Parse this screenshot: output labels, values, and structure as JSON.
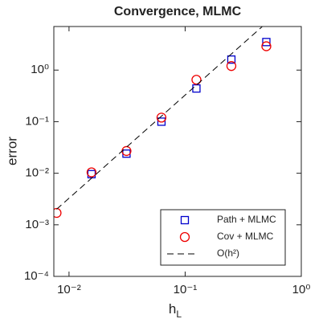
{
  "chart_data": {
    "type": "scatter",
    "title": "Convergence, MLMC",
    "xlabel": {
      "base": "h",
      "sub": "L"
    },
    "ylabel": "error",
    "xscale": "log",
    "yscale": "log",
    "xlim": [
      0.0074,
      1
    ],
    "ylim": [
      0.0001,
      7
    ],
    "xticks": [
      {
        "value": 0.01,
        "label": "10⁻²"
      },
      {
        "value": 0.1,
        "label": "10⁻¹"
      },
      {
        "value": 1,
        "label": "10⁰"
      }
    ],
    "yticks": [
      {
        "value": 0.0001,
        "label": "10⁻⁴"
      },
      {
        "value": 0.001,
        "label": "10⁻³"
      },
      {
        "value": 0.01,
        "label": "10⁻²"
      },
      {
        "value": 0.1,
        "label": "10⁻¹"
      },
      {
        "value": 1,
        "label": "10⁰"
      }
    ],
    "legend": "lower right",
    "series": [
      {
        "name": "Path + MLMC",
        "color": "#0000cc",
        "marker": "square",
        "x": [
          0.015625,
          0.03125,
          0.0625,
          0.125,
          0.25,
          0.5
        ],
        "values": [
          0.0096,
          0.024,
          0.1,
          0.44,
          1.6,
          3.5
        ]
      },
      {
        "name": "Cov + MLMC",
        "color": "#ee0000",
        "marker": "circle",
        "x": [
          0.0078125,
          0.015625,
          0.03125,
          0.0625,
          0.125,
          0.25,
          0.5
        ],
        "values": [
          0.0017,
          0.0104,
          0.027,
          0.12,
          0.65,
          1.2,
          2.9
        ]
      },
      {
        "name": "O(h²)",
        "color": "#000000",
        "marker": "dashed-line",
        "x": [
          0.0078125,
          0.5
        ],
        "values": [
          0.002,
          8.2
        ]
      }
    ]
  }
}
